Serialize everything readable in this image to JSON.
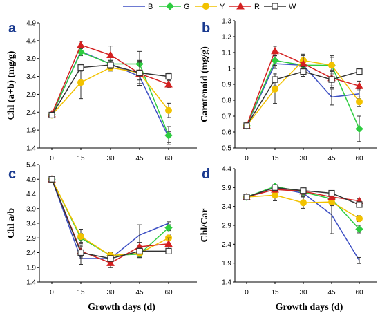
{
  "legend": [
    "B",
    "G",
    "Y",
    "R",
    "W"
  ],
  "colors": {
    "B": "#3d4fc4",
    "G": "#2ecc40",
    "Y": "#f2c200",
    "R": "#d42020",
    "W": "#333333"
  },
  "chart_data": [
    {
      "type": "line",
      "panel_label": "a",
      "ylabel": "Chl (a+b) (mg/g)",
      "xlabel": "",
      "x": [
        0,
        15,
        30,
        45,
        60
      ],
      "xticks": [
        0,
        15,
        30,
        45,
        60
      ],
      "ylim": [
        1.4,
        4.9
      ],
      "yticks": [
        "1.4",
        "1.9",
        "2.4",
        "2.9",
        "3.4",
        "3.9",
        "4.4",
        "4.9"
      ],
      "series": [
        {
          "name": "B",
          "values": [
            2.32,
            4.1,
            3.75,
            3.4,
            1.7
          ],
          "err": [
            0.05,
            0.1,
            0.1,
            0.1,
            0.15
          ]
        },
        {
          "name": "G",
          "values": [
            2.33,
            4.08,
            3.75,
            3.75,
            1.75
          ],
          "err": [
            0.05,
            0.1,
            0.1,
            0.35,
            0.25
          ]
        },
        {
          "name": "Y",
          "values": [
            2.32,
            3.23,
            3.65,
            3.5,
            2.45
          ],
          "err": [
            0.05,
            0.45,
            0.1,
            0.3,
            0.2
          ]
        },
        {
          "name": "R",
          "values": [
            2.35,
            4.28,
            4.0,
            3.48,
            3.18
          ],
          "err": [
            0.05,
            0.1,
            0.25,
            0.35,
            0.1
          ]
        },
        {
          "name": "W",
          "values": [
            2.32,
            3.65,
            3.72,
            3.5,
            3.4
          ],
          "err": [
            0.05,
            0.1,
            0.1,
            0.35,
            0.1
          ]
        }
      ]
    },
    {
      "type": "line",
      "panel_label": "b",
      "ylabel": "Carotenoid (mg/g)",
      "xlabel": "",
      "x": [
        0,
        15,
        30,
        45,
        60
      ],
      "xticks": [
        0,
        15,
        30,
        45,
        60
      ],
      "ylim": [
        0.5,
        1.3
      ],
      "yticks": [
        "0.5",
        "0.6",
        "0.7",
        "0.8",
        "0.9",
        "1",
        "1.1",
        "1.2",
        "1.3"
      ],
      "series": [
        {
          "name": "B",
          "values": [
            0.64,
            1.03,
            1.02,
            0.82,
            0.84
          ],
          "err": [
            0.01,
            0.03,
            0.03,
            0.05,
            0.03
          ]
        },
        {
          "name": "G",
          "values": [
            0.64,
            1.05,
            1.02,
            1.02,
            0.62
          ],
          "err": [
            0.01,
            0.03,
            0.03,
            0.06,
            0.08
          ]
        },
        {
          "name": "Y",
          "values": [
            0.64,
            0.87,
            1.05,
            1.02,
            0.79
          ],
          "err": [
            0.01,
            0.09,
            0.03,
            0.05,
            0.03
          ]
        },
        {
          "name": "R",
          "values": [
            0.64,
            1.11,
            1.03,
            0.94,
            0.89
          ],
          "err": [
            0.01,
            0.03,
            0.06,
            0.05,
            0.03
          ]
        },
        {
          "name": "W",
          "values": [
            0.64,
            0.93,
            0.98,
            0.93,
            0.98
          ],
          "err": [
            0.01,
            0.04,
            0.03,
            0.05,
            0.02
          ]
        }
      ]
    },
    {
      "type": "line",
      "panel_label": "c",
      "ylabel": "Chl a/b",
      "xlabel": "Growth days (d)",
      "x": [
        0,
        15,
        30,
        45,
        60
      ],
      "xticks": [
        0,
        15,
        30,
        45,
        60
      ],
      "ylim": [
        1.4,
        5.4
      ],
      "yticks": [
        "1.4",
        "1.9",
        "2.4",
        "2.9",
        "3.4",
        "3.9",
        "4.4",
        "4.9",
        "5.4"
      ],
      "series": [
        {
          "name": "B",
          "values": [
            4.9,
            2.2,
            2.2,
            3.0,
            3.4
          ],
          "err": [
            0.03,
            0.2,
            0.1,
            0.35,
            0.05
          ]
        },
        {
          "name": "G",
          "values": [
            4.9,
            2.9,
            2.3,
            2.35,
            3.25
          ],
          "err": [
            0.03,
            0.15,
            0.1,
            0.1,
            0.1
          ]
        },
        {
          "name": "Y",
          "values": [
            4.9,
            2.95,
            2.3,
            2.38,
            2.9
          ],
          "err": [
            0.03,
            0.25,
            0.1,
            0.15,
            0.1
          ]
        },
        {
          "name": "R",
          "values": [
            4.9,
            2.45,
            2.05,
            2.6,
            2.7
          ],
          "err": [
            0.03,
            0.2,
            0.15,
            0.15,
            0.2
          ]
        },
        {
          "name": "W",
          "values": [
            4.9,
            2.4,
            2.2,
            2.45,
            2.45
          ],
          "err": [
            0.03,
            0.2,
            0.1,
            0.1,
            0.05
          ]
        }
      ]
    },
    {
      "type": "line",
      "panel_label": "d",
      "ylabel": "Chl/Car",
      "xlabel": "Growth days (d)",
      "x": [
        0,
        15,
        30,
        45,
        60
      ],
      "xticks": [
        0,
        15,
        30,
        45,
        60
      ],
      "ylim": [
        1.4,
        4.4
      ],
      "yticks": [
        "1.4",
        "1.9",
        "2.4",
        "2.9",
        "3.4",
        "3.9",
        "4.4"
      ],
      "series": [
        {
          "name": "B",
          "values": [
            3.65,
            3.9,
            3.75,
            3.18,
            1.97
          ],
          "err": [
            0.03,
            0.05,
            0.08,
            0.5,
            0.08
          ]
        },
        {
          "name": "G",
          "values": [
            3.65,
            3.93,
            3.78,
            3.6,
            2.8
          ],
          "err": [
            0.03,
            0.05,
            0.08,
            0.08,
            0.1
          ]
        },
        {
          "name": "Y",
          "values": [
            3.65,
            3.7,
            3.5,
            3.52,
            3.08
          ],
          "err": [
            0.03,
            0.15,
            0.15,
            0.1,
            0.08
          ]
        },
        {
          "name": "R",
          "values": [
            3.65,
            3.85,
            3.8,
            3.65,
            3.55
          ],
          "err": [
            0.03,
            0.05,
            0.08,
            0.08,
            0.05
          ]
        },
        {
          "name": "W",
          "values": [
            3.65,
            3.9,
            3.82,
            3.75,
            3.45
          ],
          "err": [
            0.03,
            0.05,
            0.05,
            0.05,
            0.05
          ]
        }
      ]
    }
  ]
}
